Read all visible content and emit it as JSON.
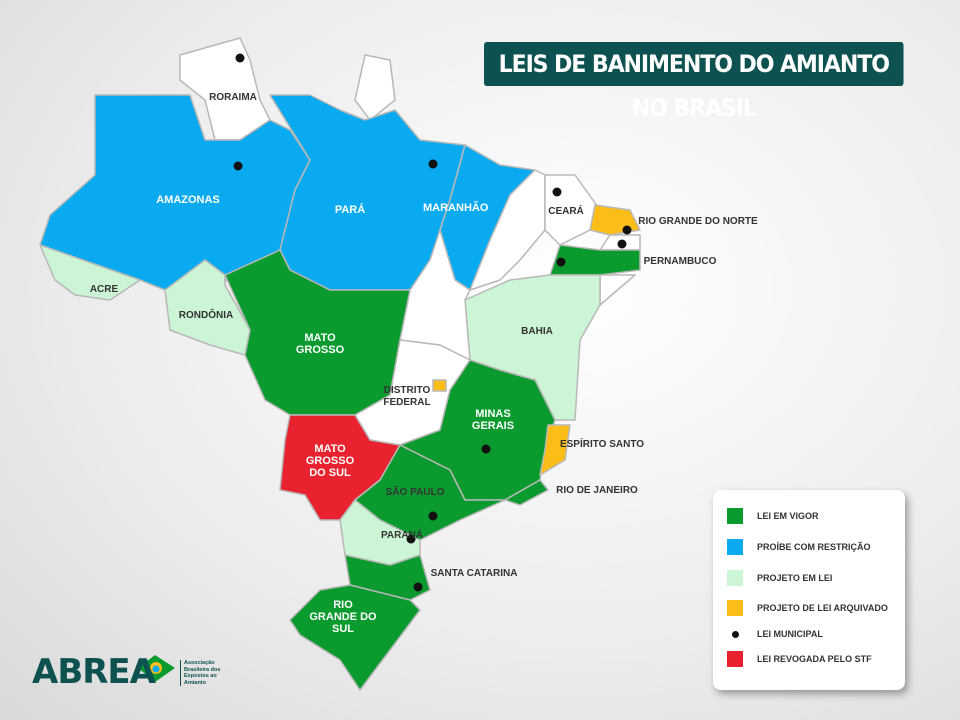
{
  "title": "LEIS DE BANIMENTO DO AMIANTO NO BRASIL",
  "states": [
    "RORAIMA",
    "AMAZONAS",
    "PARÁ",
    "MARANHÃO",
    "CEARÁ",
    "RIO GRANDE DO NORTE",
    "PERNAMBUCO",
    "ACRE",
    "RONDÔNIA",
    "MATO GROSSO",
    "BAHIA",
    "DISTRITO FEDERAL",
    "MINAS GERAIS",
    "ESPÍRITO SANTO",
    "MATO GROSSO DO SUL",
    "SÃO PAULO",
    "RIO DE JANEIRO",
    "PARANÁ",
    "SANTA CATARINA",
    "RIO GRANDE DO SUL"
  ],
  "legend": [
    {
      "label": "LEI EM VIGOR",
      "color": "#0a9a2e"
    },
    {
      "label": "PROÍBE COM RESTRIÇÃO",
      "color": "#0aaaf0"
    },
    {
      "label": "PROJETO EM LEI",
      "color": "#ccf5d5"
    },
    {
      "label": "PROJETO DE LEI ARQUIVADO",
      "color": "#fbbd17"
    },
    {
      "label": "LEI MUNICIPAL",
      "color": "#111111"
    },
    {
      "label": "LEI REVOGADA PELO STF",
      "color": "#e8232f"
    }
  ],
  "logo": {
    "name": "ABREA",
    "subtitle": "Associação Brasileira dos Expostos ao Amianto"
  }
}
